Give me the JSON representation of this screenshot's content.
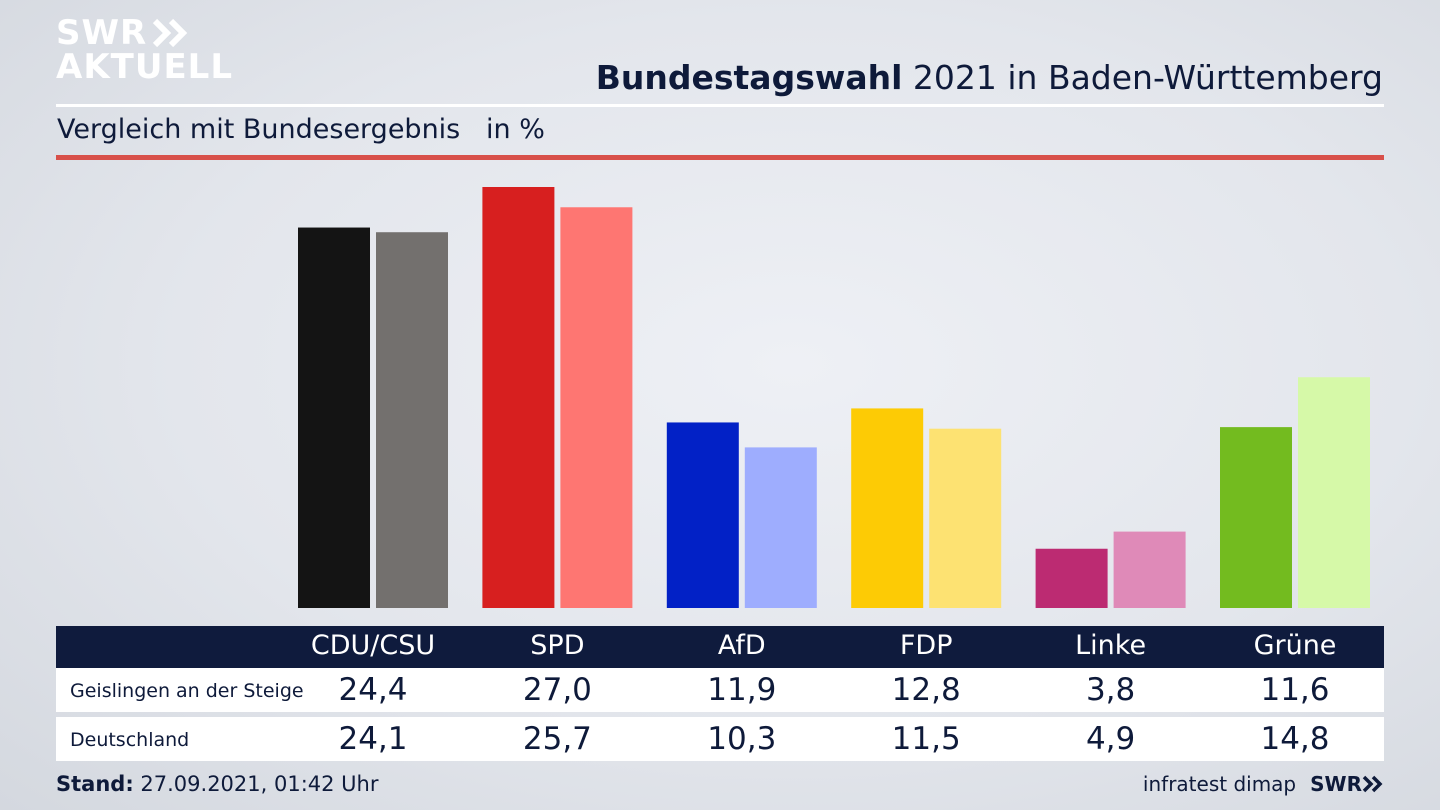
{
  "brand": {
    "line1": "SWR",
    "line2": "AKTUELL",
    "footer_logo": "SWR"
  },
  "header": {
    "title_bold": "Bundestagswahl",
    "title_rest": " 2021 in Baden-Württemberg",
    "subtitle": "Vergleich mit Bundesergebnis   in %"
  },
  "chart_data": {
    "type": "bar",
    "categories": [
      "CDU/CSU",
      "SPD",
      "AfD",
      "FDP",
      "Linke",
      "Grüne"
    ],
    "series": [
      {
        "name": "Geislingen an der Steige",
        "values": [
          24.4,
          27.0,
          11.9,
          12.8,
          3.8,
          11.6
        ],
        "value_labels": [
          "24,4",
          "27,0",
          "11,9",
          "12,8",
          "3,8",
          "11,6"
        ]
      },
      {
        "name": "Deutschland",
        "values": [
          24.1,
          25.7,
          10.3,
          11.5,
          4.9,
          14.8
        ],
        "value_labels": [
          "24,1",
          "25,7",
          "10,3",
          "11,5",
          "4,9",
          "14,8"
        ]
      }
    ],
    "colors": {
      "primary": [
        "#141414",
        "#d71f1f",
        "#0221c6",
        "#fdcb05",
        "#bc2b72",
        "#73bb1f"
      ],
      "secondary": [
        "#73706e",
        "#fe7672",
        "#9eadfe",
        "#fde272",
        "#df8ab8",
        "#d6f9a8"
      ]
    },
    "ylim": [
      0,
      27
    ]
  },
  "footer": {
    "stand_label": "Stand:",
    "stand_value": " 27.09.2021, 01:42 Uhr",
    "source": "infratest dimap"
  },
  "colors": {
    "navy": "#0f1b3d",
    "accent_red": "#d8504a"
  }
}
